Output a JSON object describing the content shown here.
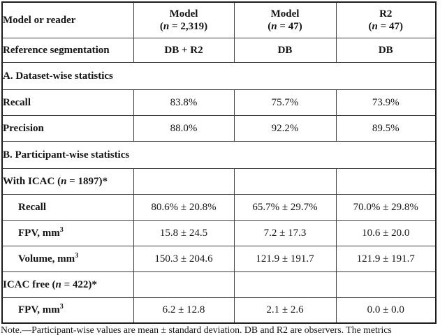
{
  "table": {
    "header": {
      "row_label": "Model or reader",
      "cols": [
        {
          "title": "Model",
          "open": "(",
          "n": "n",
          "rest": " = 2,319)"
        },
        {
          "title": "Model",
          "open": "(",
          "n": "n",
          "rest": " = 47)"
        },
        {
          "title": "R2",
          "open": "(",
          "n": "n",
          "rest": " = 47)"
        }
      ]
    },
    "reference": {
      "label": "Reference segmentation",
      "values": [
        "DB + R2",
        "DB",
        "DB"
      ]
    },
    "section_a": "A. Dataset-wise statistics",
    "rows_a": [
      {
        "label": "Recall",
        "values": [
          "83.8%",
          "75.7%",
          "73.9%"
        ]
      },
      {
        "label": "Precision",
        "values": [
          "88.0%",
          "92.2%",
          "89.5%"
        ]
      }
    ],
    "section_b": "B. Participant-wise statistics",
    "group_with_icac": {
      "pre": "With ICAC (",
      "n": "n",
      "post": " = 1897)*"
    },
    "rows_with_icac": [
      {
        "label": "Recall",
        "sup": "",
        "values": [
          "80.6% ± 20.8%",
          "65.7% ± 29.7%",
          "70.0% ± 29.8%"
        ]
      },
      {
        "label": "FPV, mm",
        "sup": "3",
        "values": [
          "15.8 ± 24.5",
          "7.2 ± 17.3",
          "10.6 ± 20.0"
        ]
      },
      {
        "label": "Volume, mm",
        "sup": "3",
        "values": [
          "150.3 ± 204.6",
          "121.9 ± 191.7",
          "121.9 ± 191.7"
        ]
      }
    ],
    "group_icac_free": {
      "pre": "ICAC free (",
      "n": "n",
      "post": " = 422)*"
    },
    "rows_icac_free": [
      {
        "label": "FPV, mm",
        "sup": "3",
        "values": [
          "6.2 ± 12.8",
          "2.1 ± 2.6",
          "0.0 ± 0.0"
        ]
      }
    ],
    "note": "Note.—Participant-wise values are mean ± standard deviation. DB and R2 are observers. The metrics"
  }
}
